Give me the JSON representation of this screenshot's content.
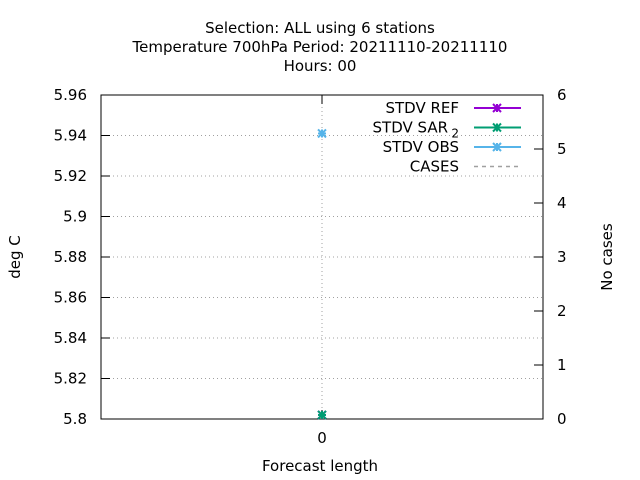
{
  "chart_data": {
    "type": "line",
    "title_lines": [
      "Selection: ALL using     6 stations",
      "Temperature 700hPa   Period: 20211110-20211110",
      "Hours:  00"
    ],
    "xlabel": "Forecast length",
    "ylabel_left": "deg C",
    "ylabel_right": "No cases",
    "x_ticks": [
      "0"
    ],
    "y_left_ticks": [
      "5.8",
      "5.82",
      "5.84",
      "5.86",
      "5.88",
      "5.9",
      "5.92",
      "5.94",
      "5.96"
    ],
    "y_left_range": [
      5.8,
      5.96
    ],
    "y_right_ticks": [
      "0",
      "1",
      "2",
      "3",
      "4",
      "5",
      "6"
    ],
    "y_right_range": [
      0,
      6
    ],
    "grid": true,
    "legend_position": "top-right",
    "series": [
      {
        "name": "STDV REF",
        "name_sub": "",
        "axis": "left",
        "color": "#9400d3",
        "style": "line-points",
        "x": [
          0
        ],
        "y": [
          5.802
        ]
      },
      {
        "name": "STDV SAR",
        "name_sub": "2",
        "axis": "left",
        "color": "#009e73",
        "style": "line-points",
        "x": [
          0
        ],
        "y": [
          5.802
        ]
      },
      {
        "name": "STDV OBS",
        "name_sub": "",
        "axis": "left",
        "color": "#56b4e9",
        "style": "line-points",
        "x": [
          0
        ],
        "y": [
          5.941
        ]
      },
      {
        "name": "CASES",
        "name_sub": "",
        "axis": "right",
        "color": "#a0a0a0",
        "style": "dashed",
        "x": [
          0
        ],
        "y": [
          6
        ]
      }
    ]
  }
}
